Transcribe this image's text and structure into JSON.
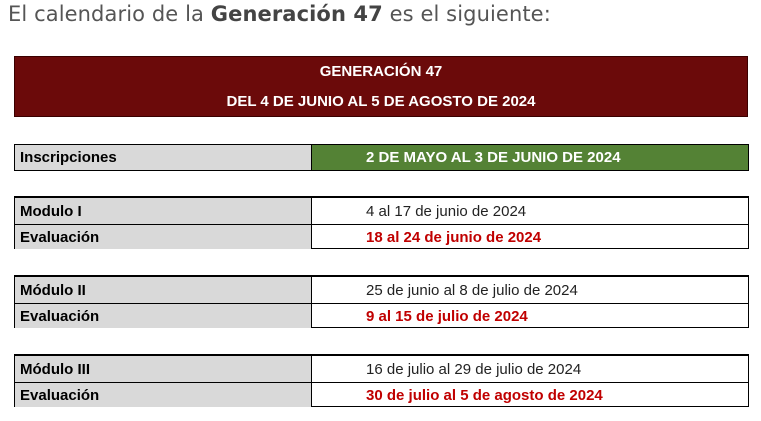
{
  "intro": {
    "prefix": "El calendario de la ",
    "highlight": "Generación 47",
    "suffix": " es el siguiente:"
  },
  "banner": {
    "line1": "GENERACIÓN 47",
    "line2": "DEL 4 DE JUNIO AL 5 DE AGOSTO DE 2024"
  },
  "inscripciones": {
    "label": "Inscripciones",
    "value": "2 DE MAYO AL 3 DE JUNIO DE 2024",
    "color": "#548235"
  },
  "modules": [
    {
      "label": "Modulo I",
      "dates": "4 al 17 de junio de 2024",
      "eval_label": "Evaluación",
      "eval_dates": "18 al 24 de junio de 2024"
    },
    {
      "label": "Módulo II",
      "dates": "25 de junio al 8 de julio de 2024",
      "eval_label": "Evaluación",
      "eval_dates": "9 al 15 de julio de 2024"
    },
    {
      "label": "Módulo III",
      "dates": "16 de julio al 29 de julio de 2024",
      "eval_label": "Evaluación",
      "eval_dates": "30 de julio al 5 de agosto de 2024"
    }
  ],
  "colors": {
    "banner": "#6b0a0a",
    "label_bg": "#d9d9d9",
    "evaluation_text": "#c00000"
  }
}
